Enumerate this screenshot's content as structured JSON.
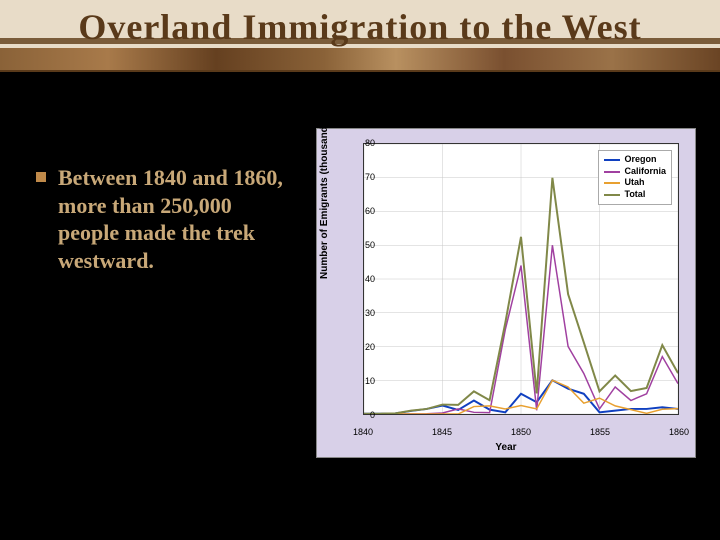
{
  "title": "Overland Immigration to the West",
  "bullet": "Between 1840 and 1860, more than 250,000 people made the trek westward.",
  "chart": {
    "type": "line",
    "xlabel": "Year",
    "ylabel": "Number of Emigrants (thousands)",
    "xlim": [
      1840,
      1860
    ],
    "ylim": [
      0,
      80
    ],
    "ytick_step": 10,
    "xtick_step": 5,
    "xticks": [
      1840,
      1845,
      1850,
      1855,
      1860
    ],
    "yticks": [
      0,
      10,
      20,
      30,
      40,
      50,
      60,
      70,
      80
    ],
    "background_color": "#d8d0e8",
    "plot_background": "#ffffff",
    "grid_color": "#c8c8c8",
    "axis_color": "#333333",
    "label_fontsize": 10,
    "tick_fontsize": 9,
    "series": [
      {
        "name": "Oregon",
        "color": "#1040c0",
        "width": 2,
        "x": [
          1840,
          1841,
          1842,
          1843,
          1844,
          1845,
          1846,
          1847,
          1848,
          1849,
          1850,
          1851,
          1852,
          1853,
          1854,
          1855,
          1856,
          1857,
          1858,
          1859,
          1860
        ],
        "y": [
          0.1,
          0.1,
          0.2,
          0.9,
          1.5,
          2.5,
          1.2,
          4,
          1.3,
          0.5,
          6,
          3.5,
          10,
          7.5,
          6,
          0.5,
          1,
          1.5,
          1.5,
          2,
          1.5
        ]
      },
      {
        "name": "California",
        "color": "#a040a0",
        "width": 1.5,
        "x": [
          1840,
          1841,
          1842,
          1843,
          1844,
          1845,
          1846,
          1847,
          1848,
          1849,
          1850,
          1851,
          1852,
          1853,
          1854,
          1855,
          1856,
          1857,
          1858,
          1859,
          1860
        ],
        "y": [
          0,
          0,
          0,
          0.04,
          0.05,
          0.3,
          1.5,
          0.5,
          0.4,
          25,
          44,
          1.1,
          50,
          20,
          12,
          1.5,
          8,
          4,
          6,
          17,
          9
        ]
      },
      {
        "name": "Utah",
        "color": "#e8a030",
        "width": 1.5,
        "x": [
          1840,
          1841,
          1842,
          1843,
          1844,
          1845,
          1846,
          1847,
          1848,
          1849,
          1850,
          1851,
          1852,
          1853,
          1854,
          1855,
          1856,
          1857,
          1858,
          1859,
          1860
        ],
        "y": [
          0,
          0,
          0,
          0,
          0,
          0,
          0,
          2.2,
          2.4,
          1.5,
          2.5,
          1.5,
          10,
          8,
          3.2,
          4.7,
          2.4,
          1.3,
          0.2,
          1.4,
          1.6
        ]
      },
      {
        "name": "Total",
        "color": "#808848",
        "width": 2,
        "x": [
          1840,
          1841,
          1842,
          1843,
          1844,
          1845,
          1846,
          1847,
          1848,
          1849,
          1850,
          1851,
          1852,
          1853,
          1854,
          1855,
          1856,
          1857,
          1858,
          1859,
          1860
        ],
        "y": [
          0.1,
          0.1,
          0.2,
          1,
          1.5,
          2.8,
          2.7,
          6.7,
          4.1,
          27,
          52.5,
          6.1,
          70,
          35.5,
          21.2,
          6.7,
          11.4,
          6.8,
          7.7,
          20.4,
          12.1
        ]
      }
    ]
  },
  "colors": {
    "slide_bg": "#000000",
    "banner_bg": "#e8dcc8",
    "title_color": "#5a3a1a",
    "bullet_color": "#c8a878",
    "bullet_marker": "#c08a4a"
  }
}
